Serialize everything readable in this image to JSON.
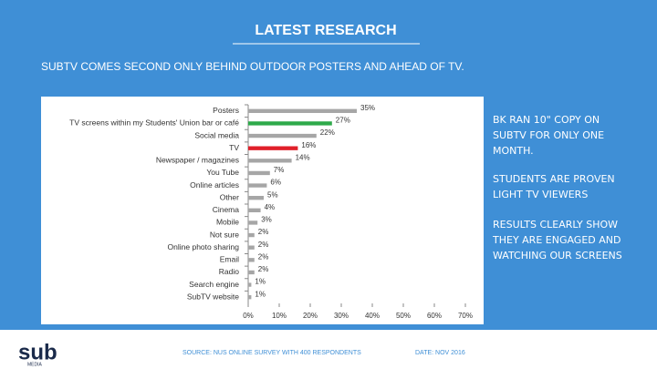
{
  "chart_data": {
    "type": "bar",
    "orientation": "horizontal",
    "title": "LATEST RESEARCH",
    "subtitle": "SUBTV COMES SECOND ONLY BEHIND OUTDOOR POSTERS AND AHEAD OF TV.",
    "categories": [
      "Posters",
      "TV screens within my Students' Union bar or café",
      "Social media",
      "TV",
      "Newspaper / magazines",
      "You Tube",
      "Online articles",
      "Other",
      "Cinema",
      "Mobile",
      "Not sure",
      "Online photo sharing",
      "Email",
      "Radio",
      "Search engine",
      "SubTV website"
    ],
    "values": [
      35,
      27,
      22,
      16,
      14,
      7,
      6,
      5,
      4,
      3,
      2,
      2,
      2,
      2,
      1,
      1
    ],
    "value_labels": [
      "35%",
      "27%",
      "22%",
      "16%",
      "14%",
      "7%",
      "6%",
      "5%",
      "4%",
      "3%",
      "2%",
      "2%",
      "2%",
      "2%",
      "1%",
      "1%"
    ],
    "colors": [
      "#a6a6a6",
      "#2eaa4a",
      "#a6a6a6",
      "#e0202a",
      "#a6a6a6",
      "#a6a6a6",
      "#a6a6a6",
      "#a6a6a6",
      "#a6a6a6",
      "#a6a6a6",
      "#a6a6a6",
      "#a6a6a6",
      "#a6a6a6",
      "#a6a6a6",
      "#a6a6a6",
      "#a6a6a6"
    ],
    "xlim": [
      0,
      70
    ],
    "xticks": [
      {
        "value": 0,
        "label": "0%"
      },
      {
        "value": 10,
        "label": "10%"
      },
      {
        "value": 20,
        "label": "20%"
      },
      {
        "value": 30,
        "label": "30%"
      },
      {
        "value": 40,
        "label": "40%"
      },
      {
        "value": 50,
        "label": "50%"
      },
      {
        "value": 60,
        "label": "60%"
      },
      {
        "value": 70,
        "label": "70%"
      }
    ],
    "annotations": [
      "BK RAN 10\" COPY ON SUBTV FOR ONLY ONE MONTH.",
      "STUDENTS ARE PROVEN LIGHT TV VIEWERS",
      "RESULTS CLEARLY SHOW THEY ARE ENGAGED AND WATCHING OUR SCREENS"
    ],
    "source": "SOURCE: NUS ONLINE SURVEY WITH 400 RESPONDENTS",
    "date": "DATE: NOV 2016",
    "logo": "sub",
    "logo_sub": "MEDIA"
  }
}
